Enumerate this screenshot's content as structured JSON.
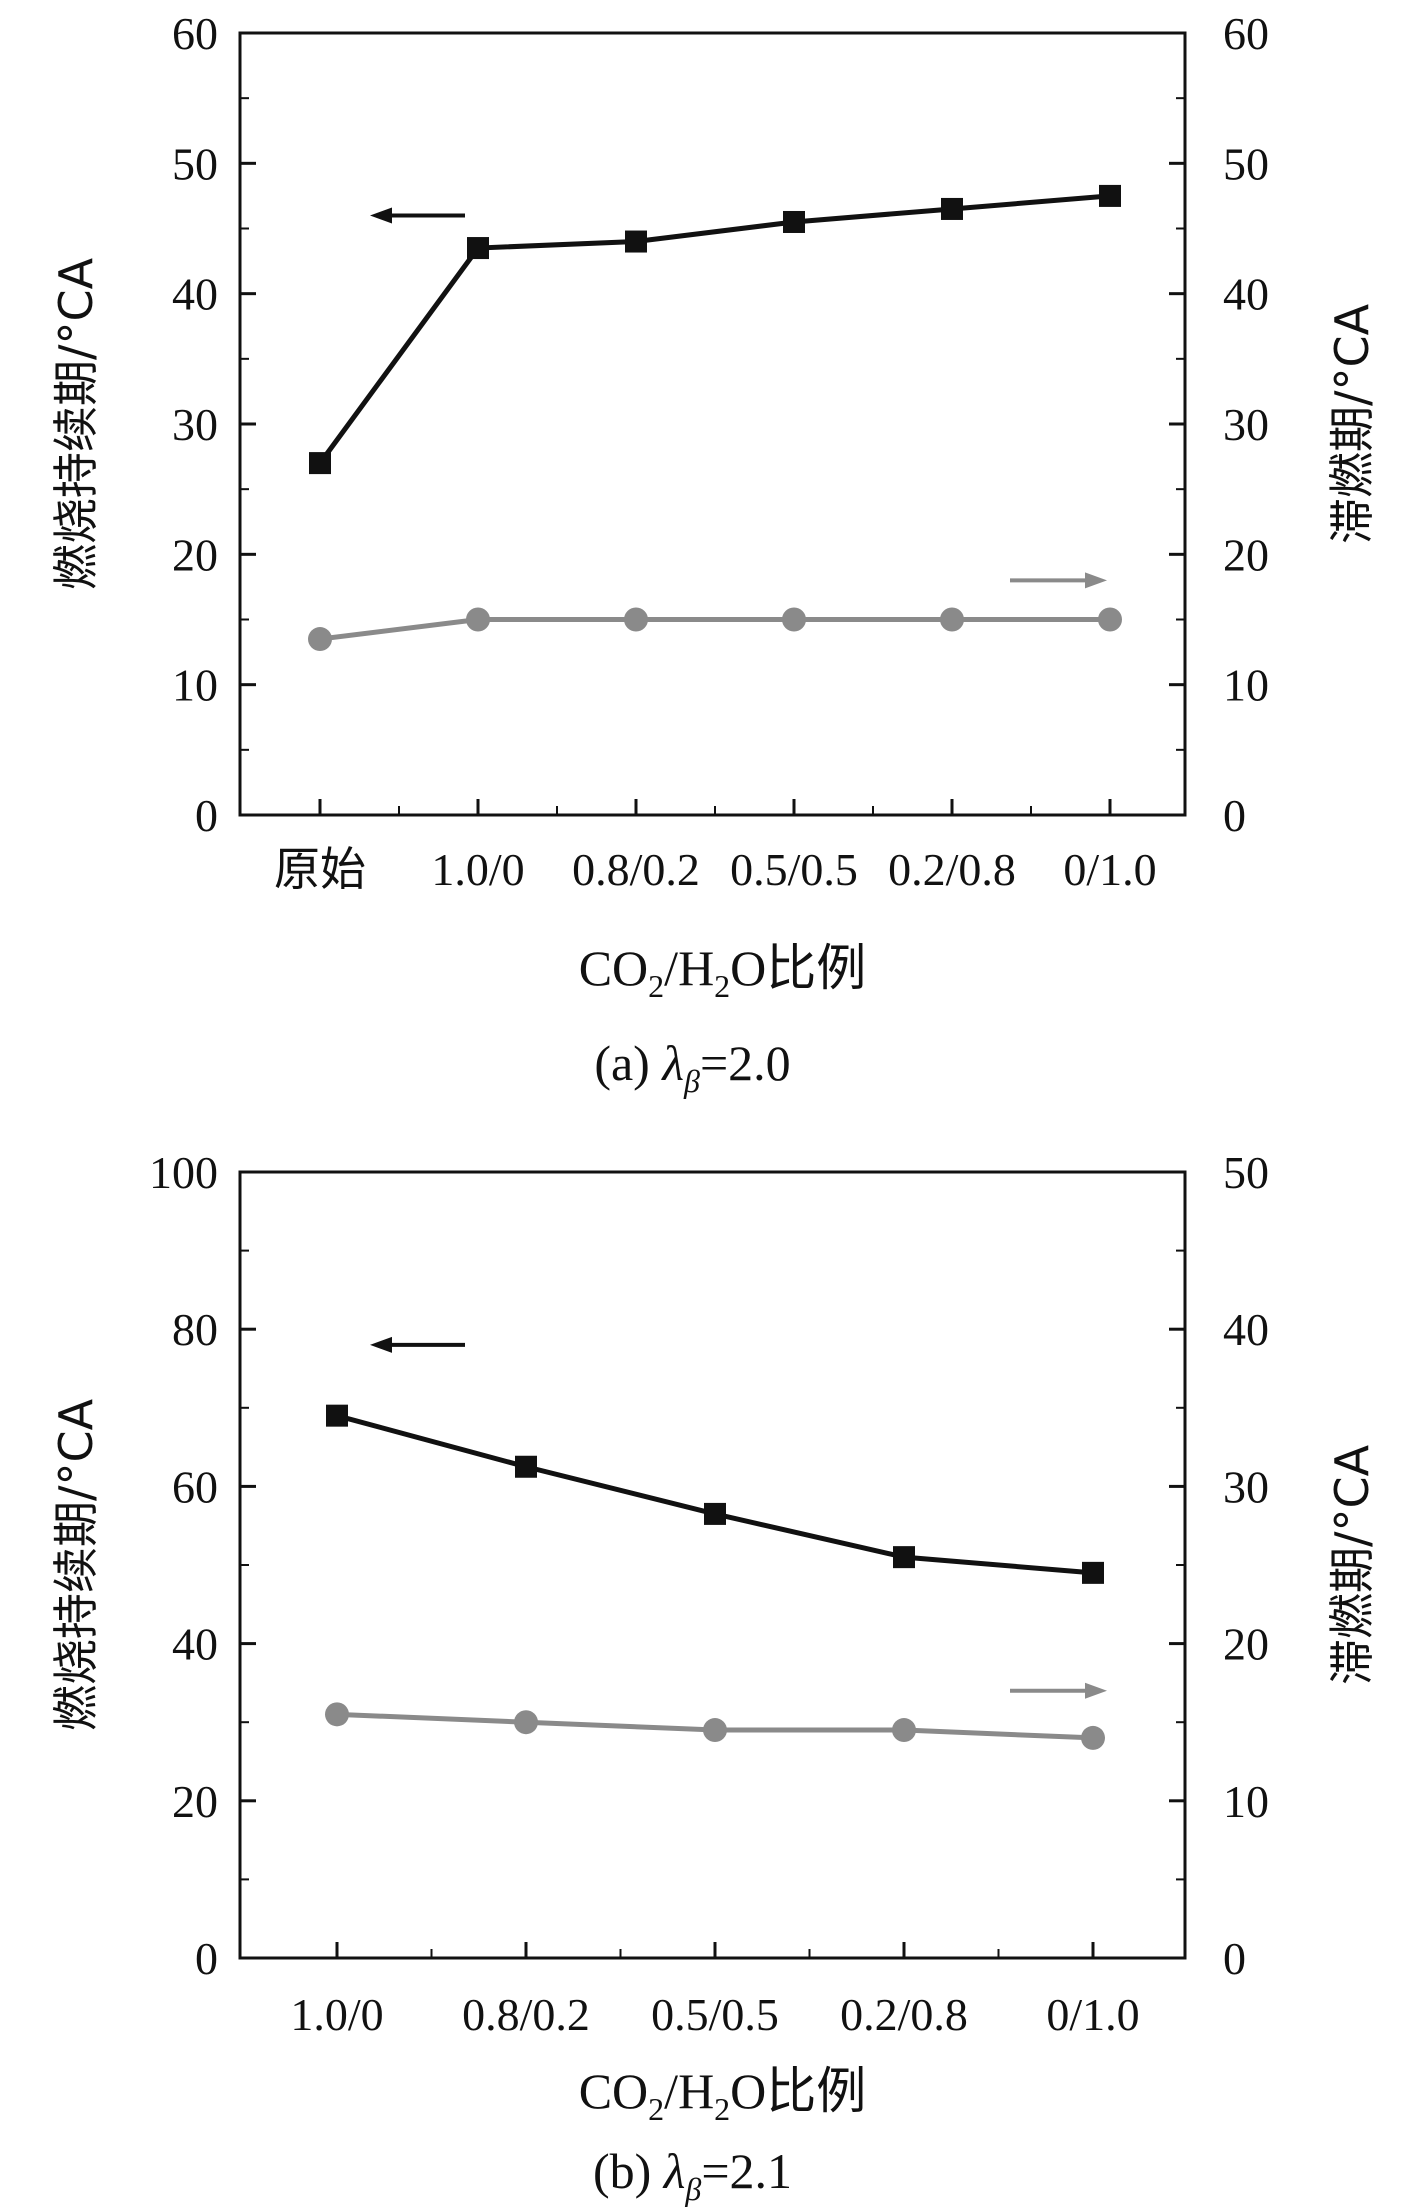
{
  "chart_data": [
    {
      "type": "line",
      "caption": {
        "prefix": "(a) ",
        "symbol": "λ",
        "subscript": "β",
        "value": "=2.0"
      },
      "categories": [
        "原始",
        "1.0/0",
        "0.8/0.2",
        "0.5/0.5",
        "0.2/0.8",
        "0/1.0"
      ],
      "xlabel": {
        "part1": "CO",
        "sub1": "2",
        "part2": "/H",
        "sub2": "2",
        "part3": "O比例"
      },
      "ylabel_left": "燃烧持续期/°CA",
      "ylabel_right": "滞燃期/°CA",
      "ylim_left": [
        0,
        60
      ],
      "ylim_right": [
        0,
        60
      ],
      "yticks_left": [
        0,
        10,
        20,
        30,
        40,
        50,
        60
      ],
      "yticks_right": [
        0,
        10,
        20,
        30,
        40,
        50,
        60
      ],
      "series": [
        {
          "axis": "left",
          "values": [
            27,
            43.5,
            44,
            45.5,
            46.5,
            47.5
          ],
          "color": "#111111",
          "marker": "square"
        },
        {
          "axis": "right",
          "values": [
            13.5,
            15,
            15,
            15,
            15,
            15
          ],
          "color": "#8a8a8a",
          "marker": "circle"
        }
      ],
      "arrows": [
        {
          "direction": "left",
          "axis": "left",
          "y": 46,
          "color": "#111111"
        },
        {
          "direction": "right",
          "axis": "right",
          "y": 18,
          "color": "#8a8a8a"
        }
      ]
    },
    {
      "type": "line",
      "caption": {
        "prefix": "(b) ",
        "symbol": "λ",
        "subscript": "β",
        "value": "=2.1"
      },
      "categories": [
        "1.0/0",
        "0.8/0.2",
        "0.5/0.5",
        "0.2/0.8",
        "0/1.0"
      ],
      "xlabel": {
        "part1": "CO",
        "sub1": "2",
        "part2": "/H",
        "sub2": "2",
        "part3": "O比例"
      },
      "ylabel_left": "燃烧持续期/°CA",
      "ylabel_right": "滞燃期/°CA",
      "ylim_left": [
        0,
        100
      ],
      "ylim_right": [
        0,
        50
      ],
      "yticks_left": [
        0,
        20,
        40,
        60,
        80,
        100
      ],
      "yticks_right": [
        0,
        10,
        20,
        30,
        40,
        50
      ],
      "series": [
        {
          "axis": "left",
          "values": [
            69,
            62.5,
            56.5,
            51,
            49
          ],
          "color": "#111111",
          "marker": "square"
        },
        {
          "axis": "right",
          "values": [
            15.5,
            15,
            14.5,
            14.5,
            14
          ],
          "color": "#8a8a8a",
          "marker": "circle"
        }
      ],
      "arrows": [
        {
          "direction": "left",
          "axis": "left",
          "y": 78,
          "color": "#111111"
        },
        {
          "direction": "right",
          "axis": "right",
          "y": 17,
          "color": "#8a8a8a"
        }
      ]
    }
  ]
}
